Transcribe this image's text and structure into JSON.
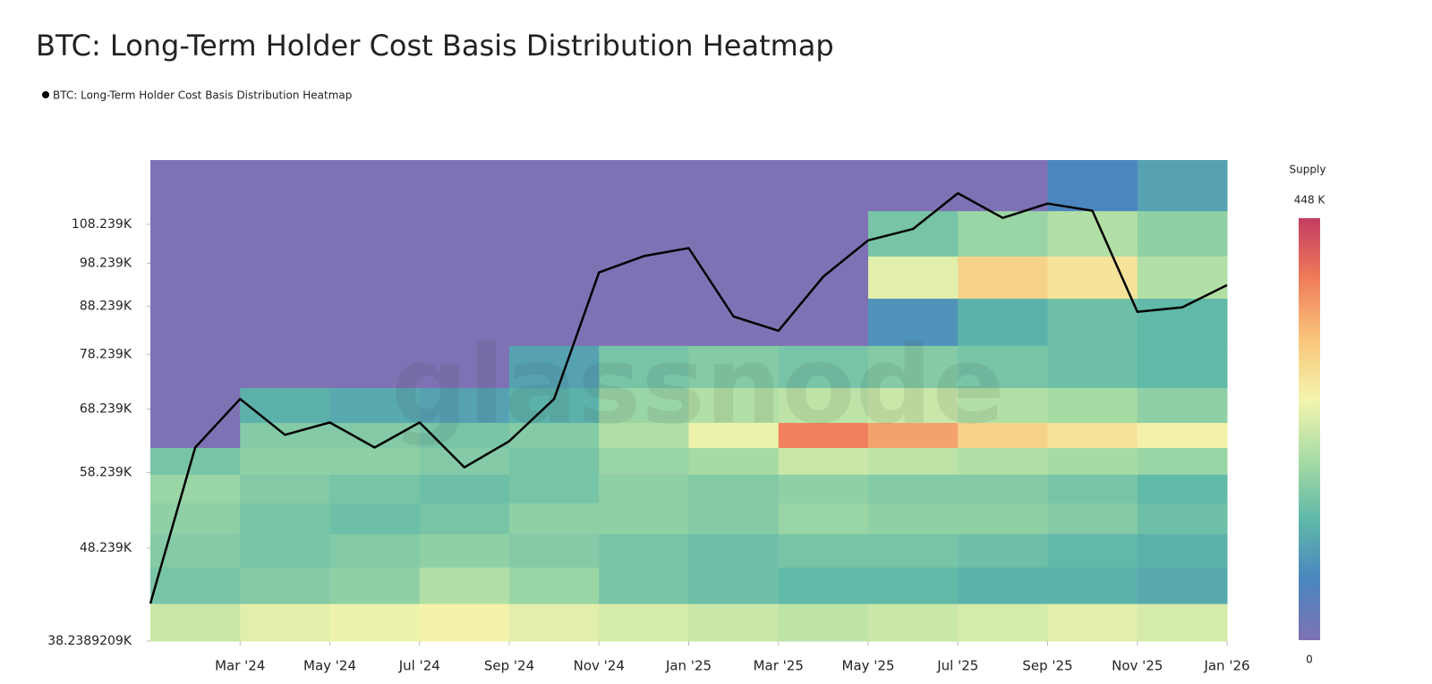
{
  "chart_data": {
    "type": "heatmap",
    "title": "BTC: Long-Term Holder Cost Basis Distribution Heatmap",
    "watermark": "glassnode",
    "y_scale": "log",
    "ylim": [
      38238.9209,
      127100
    ],
    "yticks": [
      {
        "value": 38238.9209,
        "label": "38.2389209K"
      },
      {
        "value": 48239,
        "label": "48.239K"
      },
      {
        "value": 58239,
        "label": "58.239K"
      },
      {
        "value": 68239,
        "label": "68.239K"
      },
      {
        "value": 78239,
        "label": "78.239K"
      },
      {
        "value": 88239,
        "label": "88.239K"
      },
      {
        "value": 98239,
        "label": "98.239K"
      },
      {
        "value": 108239,
        "label": "108.239K"
      }
    ],
    "xlim": [
      "2024-01",
      "2026-01"
    ],
    "xticks": [
      {
        "value": "2024-03",
        "label": "Mar '24"
      },
      {
        "value": "2024-05",
        "label": "May '24"
      },
      {
        "value": "2024-07",
        "label": "Jul '24"
      },
      {
        "value": "2024-09",
        "label": "Sep '24"
      },
      {
        "value": "2024-11",
        "label": "Nov '24"
      },
      {
        "value": "2025-01",
        "label": "Jan '25"
      },
      {
        "value": "2025-03",
        "label": "Mar '25"
      },
      {
        "value": "2025-05",
        "label": "May '25"
      },
      {
        "value": "2025-07",
        "label": "Jul '25"
      },
      {
        "value": "2025-09",
        "label": "Sep '25"
      },
      {
        "value": "2025-11",
        "label": "Nov '25"
      },
      {
        "value": "2026-01",
        "label": "Jan '26"
      }
    ],
    "x_bins": [
      "2024-01",
      "2024-03",
      "2024-05",
      "2024-07",
      "2024-09",
      "2024-11",
      "2025-01",
      "2025-03",
      "2025-05",
      "2025-07",
      "2025-09",
      "2025-11",
      "2026-01"
    ],
    "y_bins": [
      38238.9209,
      42000,
      46000,
      50000,
      54000,
      58000,
      62000,
      66000,
      72000,
      80000,
      90000,
      100000,
      112000,
      127100
    ],
    "z": [
      [
        220000,
        240000,
        250000,
        260000,
        240000,
        230000,
        220000,
        210000,
        220000,
        230000,
        240000,
        230000
      ],
      [
        150000,
        160000,
        170000,
        200000,
        180000,
        150000,
        140000,
        130000,
        130000,
        120000,
        120000,
        110000
      ],
      [
        160000,
        150000,
        160000,
        170000,
        160000,
        150000,
        140000,
        150000,
        150000,
        140000,
        130000,
        120000
      ],
      [
        170000,
        150000,
        140000,
        150000,
        170000,
        170000,
        160000,
        180000,
        170000,
        170000,
        160000,
        140000
      ],
      [
        180000,
        160000,
        150000,
        140000,
        150000,
        170000,
        160000,
        170000,
        160000,
        160000,
        150000,
        130000
      ],
      [
        150000,
        170000,
        170000,
        160000,
        150000,
        180000,
        190000,
        220000,
        210000,
        200000,
        190000,
        180000
      ],
      [
        0,
        160000,
        160000,
        150000,
        160000,
        200000,
        250000,
        380000,
        350000,
        300000,
        280000,
        260000
      ],
      [
        0,
        120000,
        110000,
        100000,
        120000,
        180000,
        200000,
        210000,
        220000,
        200000,
        190000,
        170000
      ],
      [
        0,
        0,
        0,
        0,
        100000,
        150000,
        160000,
        150000,
        160000,
        150000,
        140000,
        130000
      ],
      [
        0,
        0,
        0,
        0,
        0,
        0,
        0,
        0,
        80000,
        120000,
        140000,
        130000
      ],
      [
        0,
        0,
        0,
        0,
        0,
        0,
        0,
        0,
        240000,
        300000,
        280000,
        200000
      ],
      [
        0,
        0,
        0,
        0,
        0,
        0,
        0,
        0,
        150000,
        180000,
        200000,
        170000
      ],
      [
        0,
        0,
        0,
        0,
        0,
        0,
        0,
        0,
        0,
        0,
        60000,
        100000
      ]
    ],
    "colorbar": {
      "title": "Supply",
      "min": 0,
      "max": {
        "value": 448000,
        "label": "448 K"
      }
    },
    "colorscale": [
      "#7f72b4",
      "#4a86c0",
      "#5fb8a8",
      "#a8dca4",
      "#f4f5ad",
      "#f9c47a",
      "#ef7c5a",
      "#c43c61"
    ],
    "series": [
      {
        "name": "BTC: Long-Term Holder Cost Basis Distribution Heatmap",
        "color": "#000000",
        "x": [
          "2024-01",
          "2024-02",
          "2024-03",
          "2024-04",
          "2024-05",
          "2024-06",
          "2024-07",
          "2024-08",
          "2024-09",
          "2024-10",
          "2024-11",
          "2024-12",
          "2025-01",
          "2025-02",
          "2025-03",
          "2025-04",
          "2025-05",
          "2025-06",
          "2025-07",
          "2025-08",
          "2025-09",
          "2025-10",
          "2025-11",
          "2025-12",
          "2026-01"
        ],
        "values": [
          42000,
          62000,
          70000,
          64000,
          66000,
          62000,
          66000,
          59000,
          63000,
          70000,
          96000,
          100000,
          102000,
          86000,
          83000,
          95000,
          104000,
          107000,
          117000,
          110000,
          114000,
          112000,
          87000,
          88000,
          93000
        ]
      }
    ]
  }
}
